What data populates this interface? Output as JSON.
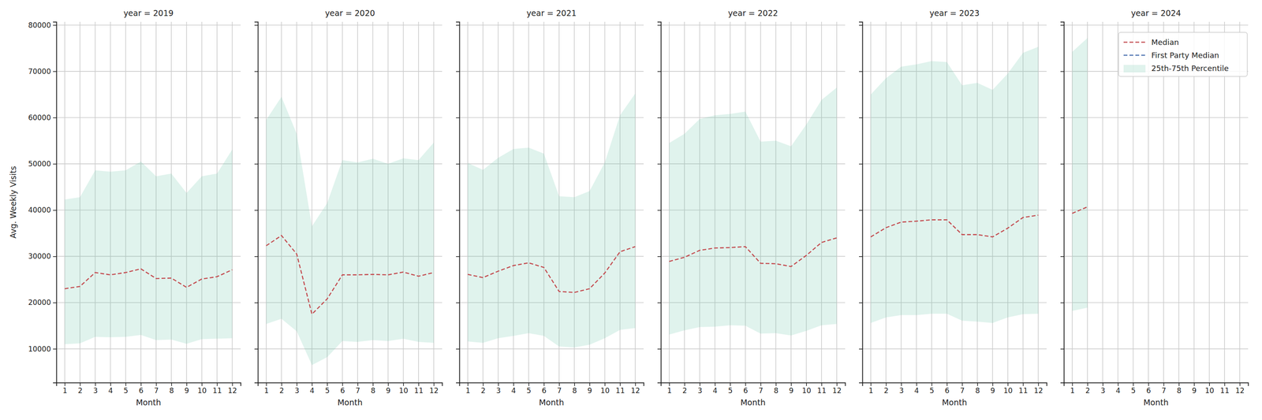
{
  "chart_data": [
    {
      "type": "line",
      "title": "year = 2019",
      "x_label": "Month",
      "y_label": "Avg. Weekly Visits",
      "x": [
        1,
        2,
        3,
        4,
        5,
        6,
        7,
        8,
        9,
        10,
        11,
        12
      ],
      "xlim": [
        0.45,
        12.55
      ],
      "xticks": [
        1,
        2,
        3,
        4,
        5,
        6,
        7,
        8,
        9,
        10,
        11,
        12
      ],
      "ylim": [
        2700,
        80700
      ],
      "yticks": [
        10000,
        20000,
        30000,
        40000,
        50000,
        60000,
        70000,
        80000
      ],
      "grid": true,
      "series": [
        {
          "name": "Median",
          "type": "line",
          "color": "#c44e52",
          "line_style": "dashed",
          "values": [
            23000,
            23500,
            26500,
            26000,
            26500,
            27300,
            25200,
            25300,
            23300,
            25100,
            25600,
            27100
          ]
        },
        {
          "name": "First Party Median",
          "type": "line",
          "color": "#4c72b0",
          "line_style": "dashed",
          "values": [
            null,
            null,
            null,
            null,
            null,
            null,
            null,
            null,
            null,
            null,
            null,
            null
          ]
        },
        {
          "name": "25th-75th Percentile",
          "type": "area",
          "color": "#66c2a5",
          "lower": [
            11000,
            11200,
            12600,
            12500,
            12600,
            13000,
            11900,
            12000,
            11100,
            12100,
            12200,
            12300
          ],
          "upper": [
            42300,
            42800,
            48600,
            48300,
            48600,
            50500,
            47300,
            47900,
            43700,
            47300,
            47900,
            53100
          ]
        }
      ]
    },
    {
      "type": "line",
      "title": "year = 2020",
      "x_label": "Month",
      "tick_labels": "x",
      "x": [
        1,
        2,
        3,
        4,
        5,
        6,
        7,
        8,
        9,
        10,
        11,
        12
      ],
      "xlim": [
        0.45,
        12.55
      ],
      "xticks": [
        1,
        2,
        3,
        4,
        5,
        6,
        7,
        8,
        9,
        10,
        11,
        12
      ],
      "ylim": [
        2700,
        80700
      ],
      "yticks": [
        10000,
        20000,
        30000,
        40000,
        50000,
        60000,
        70000,
        80000
      ],
      "grid": true,
      "series": [
        {
          "name": "Median",
          "type": "line",
          "color": "#c44e52",
          "line_style": "dashed",
          "values": [
            32300,
            34500,
            30500,
            17500,
            20800,
            26000,
            26000,
            26100,
            26000,
            26600,
            25700,
            26500
          ]
        },
        {
          "name": "First Party Median",
          "type": "line",
          "color": "#4c72b0",
          "line_style": "dashed",
          "values": [
            null,
            null,
            null,
            null,
            null,
            null,
            null,
            null,
            null,
            null,
            null,
            null
          ]
        },
        {
          "name": "25th-75th Percentile",
          "type": "area",
          "color": "#66c2a5",
          "lower": [
            15400,
            16500,
            13800,
            6500,
            8200,
            11700,
            11500,
            11900,
            11700,
            12200,
            11500,
            11300
          ],
          "upper": [
            59500,
            64500,
            56500,
            36500,
            41500,
            50800,
            50300,
            51100,
            50000,
            51200,
            50800,
            54600
          ]
        }
      ]
    },
    {
      "type": "line",
      "title": "year = 2021",
      "x_label": "Month",
      "tick_labels": "x",
      "x": [
        1,
        2,
        3,
        4,
        5,
        6,
        7,
        8,
        9,
        10,
        11,
        12
      ],
      "xlim": [
        0.45,
        12.55
      ],
      "xticks": [
        1,
        2,
        3,
        4,
        5,
        6,
        7,
        8,
        9,
        10,
        11,
        12
      ],
      "ylim": [
        2700,
        80700
      ],
      "yticks": [
        10000,
        20000,
        30000,
        40000,
        50000,
        60000,
        70000,
        80000
      ],
      "grid": true,
      "series": [
        {
          "name": "Median",
          "type": "line",
          "color": "#c44e52",
          "line_style": "dashed",
          "values": [
            26100,
            25400,
            26800,
            28000,
            28600,
            27600,
            22400,
            22200,
            23000,
            26400,
            31000,
            32100
          ]
        },
        {
          "name": "First Party Median",
          "type": "line",
          "color": "#4c72b0",
          "line_style": "dashed",
          "values": [
            null,
            null,
            null,
            null,
            null,
            null,
            null,
            null,
            null,
            null,
            null,
            null
          ]
        },
        {
          "name": "25th-75th Percentile",
          "type": "area",
          "color": "#66c2a5",
          "lower": [
            11600,
            11300,
            12300,
            12800,
            13400,
            12800,
            10500,
            10300,
            10900,
            12300,
            14100,
            14500
          ],
          "upper": [
            50200,
            48700,
            51300,
            53200,
            53500,
            52200,
            43000,
            42800,
            44100,
            50300,
            60500,
            65200
          ]
        }
      ]
    },
    {
      "type": "line",
      "title": "year = 2022",
      "x_label": "Month",
      "tick_labels": "x",
      "x": [
        1,
        2,
        3,
        4,
        5,
        6,
        7,
        8,
        9,
        10,
        11,
        12
      ],
      "xlim": [
        0.45,
        12.55
      ],
      "xticks": [
        1,
        2,
        3,
        4,
        5,
        6,
        7,
        8,
        9,
        10,
        11,
        12
      ],
      "ylim": [
        2700,
        80700
      ],
      "yticks": [
        10000,
        20000,
        30000,
        40000,
        50000,
        60000,
        70000,
        80000
      ],
      "grid": true,
      "series": [
        {
          "name": "Median",
          "type": "line",
          "color": "#c44e52",
          "line_style": "dashed",
          "values": [
            28900,
            29800,
            31300,
            31800,
            31900,
            32100,
            28500,
            28400,
            27800,
            30200,
            33000,
            34000
          ]
        },
        {
          "name": "First Party Median",
          "type": "line",
          "color": "#4c72b0",
          "line_style": "dashed",
          "values": [
            null,
            null,
            null,
            null,
            null,
            null,
            null,
            null,
            null,
            null,
            null,
            null
          ]
        },
        {
          "name": "25th-75th Percentile",
          "type": "area",
          "color": "#66c2a5",
          "lower": [
            13100,
            14000,
            14700,
            14800,
            15100,
            15000,
            13300,
            13400,
            12900,
            13900,
            15100,
            15400
          ],
          "upper": [
            54500,
            56500,
            59700,
            60500,
            60800,
            61300,
            54800,
            55000,
            53800,
            58500,
            63800,
            66500
          ]
        }
      ]
    },
    {
      "type": "line",
      "title": "year = 2023",
      "x_label": "Month",
      "tick_labels": "x",
      "x": [
        1,
        2,
        3,
        4,
        5,
        6,
        7,
        8,
        9,
        10,
        11,
        12
      ],
      "xlim": [
        0.45,
        12.55
      ],
      "xticks": [
        1,
        2,
        3,
        4,
        5,
        6,
        7,
        8,
        9,
        10,
        11,
        12
      ],
      "ylim": [
        2700,
        80700
      ],
      "yticks": [
        10000,
        20000,
        30000,
        40000,
        50000,
        60000,
        70000,
        80000
      ],
      "grid": true,
      "series": [
        {
          "name": "Median",
          "type": "line",
          "color": "#c44e52",
          "line_style": "dashed",
          "values": [
            34200,
            36200,
            37400,
            37600,
            37900,
            37900,
            34700,
            34700,
            34200,
            36100,
            38400,
            38900
          ]
        },
        {
          "name": "First Party Median",
          "type": "line",
          "color": "#4c72b0",
          "line_style": "dashed",
          "values": [
            null,
            null,
            null,
            null,
            null,
            null,
            null,
            null,
            null,
            null,
            null,
            null
          ]
        },
        {
          "name": "25th-75th Percentile",
          "type": "area",
          "color": "#66c2a5",
          "lower": [
            15600,
            16800,
            17300,
            17300,
            17600,
            17600,
            16100,
            15900,
            15600,
            16800,
            17500,
            17600
          ],
          "upper": [
            65000,
            68500,
            71000,
            71500,
            72200,
            72000,
            67000,
            67500,
            66000,
            69500,
            74000,
            75300
          ]
        }
      ]
    },
    {
      "type": "line",
      "title": "year = 2024",
      "x_label": "Month",
      "tick_labels": "x",
      "legend": "upper right",
      "x": [
        1,
        2,
        3,
        4,
        5,
        6,
        7,
        8,
        9,
        10,
        11,
        12
      ],
      "xlim": [
        0.45,
        12.55
      ],
      "xticks": [
        1,
        2,
        3,
        4,
        5,
        6,
        7,
        8,
        9,
        10,
        11,
        12
      ],
      "ylim": [
        2700,
        80700
      ],
      "yticks": [
        10000,
        20000,
        30000,
        40000,
        50000,
        60000,
        70000,
        80000
      ],
      "grid": true,
      "series": [
        {
          "name": "Median",
          "type": "line",
          "color": "#c44e52",
          "line_style": "dashed",
          "values": [
            39300,
            40700,
            null,
            null,
            null,
            null,
            null,
            null,
            null,
            null,
            null,
            null
          ]
        },
        {
          "name": "First Party Median",
          "type": "line",
          "color": "#4c72b0",
          "line_style": "dashed",
          "values": [
            null,
            null,
            null,
            null,
            null,
            null,
            null,
            null,
            null,
            null,
            null,
            null
          ]
        },
        {
          "name": "25th-75th Percentile",
          "type": "area",
          "color": "#66c2a5",
          "lower": [
            18200,
            18900,
            null,
            null,
            null,
            null,
            null,
            null,
            null,
            null,
            null,
            null
          ],
          "upper": [
            74200,
            77200,
            null,
            null,
            null,
            null,
            null,
            null,
            null,
            null,
            null,
            null
          ]
        }
      ]
    }
  ]
}
